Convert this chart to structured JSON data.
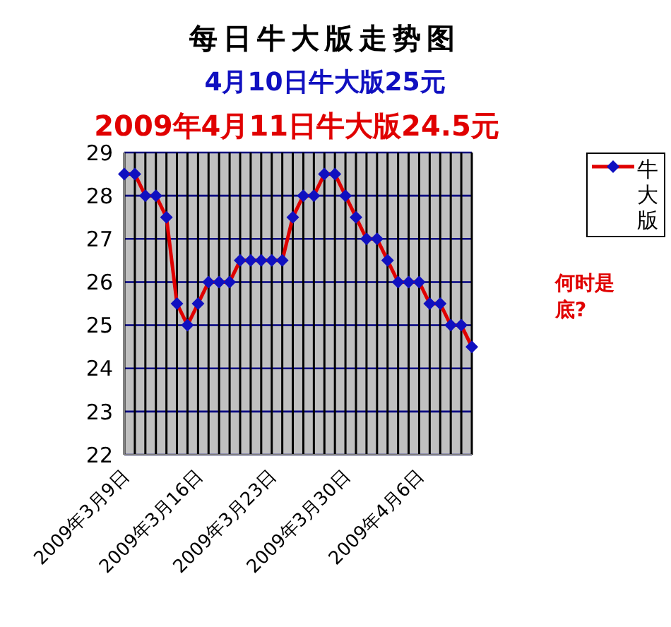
{
  "chart_data": {
    "type": "line",
    "title": "每日牛大版走势图",
    "subtitle": "4月10日牛大版25元",
    "annotations": [
      "2009年4月11日牛大版24.5元",
      "何时是底?"
    ],
    "categories": [
      "2009年3月9日",
      null,
      null,
      null,
      null,
      null,
      null,
      "2009年3月16日",
      null,
      null,
      null,
      null,
      null,
      null,
      "2009年3月23日",
      null,
      null,
      null,
      null,
      null,
      null,
      "2009年3月30日",
      null,
      null,
      null,
      null,
      null,
      null,
      "2009年4月6日",
      null,
      null,
      null,
      null,
      null
    ],
    "series": [
      {
        "name": "牛大版",
        "color": "#e00000",
        "values": [
          28.5,
          28.5,
          28,
          28,
          27.5,
          25.5,
          25,
          25.5,
          26,
          26,
          26,
          26.5,
          26.5,
          26.5,
          26.5,
          26.5,
          27.5,
          28,
          28,
          28.5,
          28.5,
          28,
          27.5,
          27,
          27,
          26.5,
          26,
          26,
          26,
          25.5,
          25.5,
          25,
          25,
          24.5
        ]
      }
    ],
    "ylim": [
      22,
      29
    ],
    "yticks": [
      22,
      23,
      24,
      25,
      26,
      27,
      28,
      29
    ],
    "grid": true,
    "legend": "right",
    "marker": "diamond",
    "line_style": "solid"
  }
}
